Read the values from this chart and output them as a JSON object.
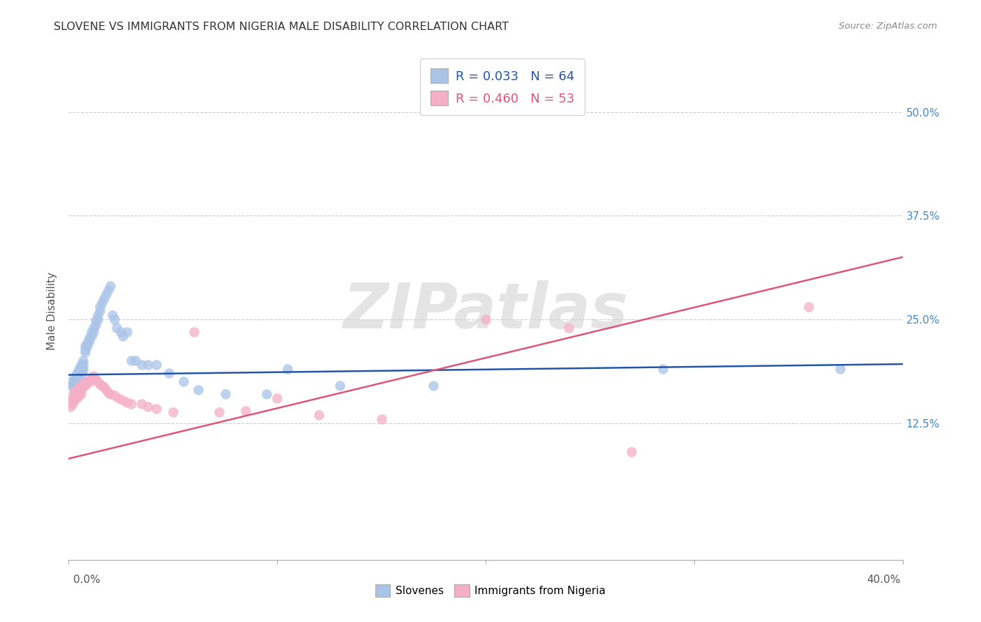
{
  "title": "SLOVENE VS IMMIGRANTS FROM NIGERIA MALE DISABILITY CORRELATION CHART",
  "source": "Source: ZipAtlas.com",
  "ylabel": "Male Disability",
  "ytick_labels": [
    "12.5%",
    "25.0%",
    "37.5%",
    "50.0%"
  ],
  "ytick_values": [
    0.125,
    0.25,
    0.375,
    0.5
  ],
  "xlim": [
    0.0,
    0.4
  ],
  "ylim": [
    -0.04,
    0.56
  ],
  "blue_color": "#aac4e8",
  "pink_color": "#f4afc6",
  "line_blue_color": "#2255aa",
  "line_pink_color": "#dd5577",
  "watermark": "ZIPatlas",
  "blue_line_x0": 0.0,
  "blue_line_y0": 0.183,
  "blue_line_x1": 0.4,
  "blue_line_y1": 0.196,
  "pink_line_x0": 0.0,
  "pink_line_y0": 0.082,
  "pink_line_x1": 0.4,
  "pink_line_y1": 0.325,
  "slovene_x": [
    0.001,
    0.002,
    0.002,
    0.003,
    0.003,
    0.003,
    0.004,
    0.004,
    0.004,
    0.004,
    0.005,
    0.005,
    0.005,
    0.006,
    0.006,
    0.006,
    0.006,
    0.007,
    0.007,
    0.007,
    0.007,
    0.008,
    0.008,
    0.008,
    0.009,
    0.009,
    0.01,
    0.01,
    0.011,
    0.011,
    0.012,
    0.012,
    0.013,
    0.013,
    0.014,
    0.014,
    0.015,
    0.015,
    0.016,
    0.017,
    0.018,
    0.019,
    0.02,
    0.021,
    0.022,
    0.023,
    0.025,
    0.026,
    0.028,
    0.03,
    0.032,
    0.035,
    0.038,
    0.042,
    0.048,
    0.055,
    0.062,
    0.075,
    0.095,
    0.105,
    0.13,
    0.175,
    0.285,
    0.37
  ],
  "slovene_y": [
    0.175,
    0.172,
    0.168,
    0.18,
    0.176,
    0.17,
    0.185,
    0.18,
    0.175,
    0.17,
    0.19,
    0.186,
    0.182,
    0.195,
    0.192,
    0.188,
    0.184,
    0.2,
    0.196,
    0.192,
    0.188,
    0.218,
    0.214,
    0.21,
    0.222,
    0.218,
    0.228,
    0.224,
    0.235,
    0.23,
    0.24,
    0.235,
    0.248,
    0.243,
    0.255,
    0.25,
    0.265,
    0.26,
    0.27,
    0.275,
    0.28,
    0.285,
    0.29,
    0.255,
    0.25,
    0.24,
    0.235,
    0.23,
    0.235,
    0.2,
    0.2,
    0.195,
    0.195,
    0.195,
    0.185,
    0.175,
    0.165,
    0.16,
    0.16,
    0.19,
    0.17,
    0.17,
    0.19,
    0.19
  ],
  "nigeria_x": [
    0.001,
    0.001,
    0.002,
    0.002,
    0.002,
    0.003,
    0.003,
    0.003,
    0.004,
    0.004,
    0.004,
    0.005,
    0.005,
    0.005,
    0.006,
    0.006,
    0.006,
    0.007,
    0.007,
    0.008,
    0.008,
    0.009,
    0.01,
    0.01,
    0.011,
    0.012,
    0.013,
    0.014,
    0.015,
    0.016,
    0.017,
    0.018,
    0.019,
    0.02,
    0.022,
    0.024,
    0.026,
    0.028,
    0.03,
    0.035,
    0.038,
    0.042,
    0.05,
    0.06,
    0.072,
    0.085,
    0.1,
    0.12,
    0.15,
    0.2,
    0.24,
    0.27,
    0.355
  ],
  "nigeria_y": [
    0.15,
    0.145,
    0.158,
    0.153,
    0.148,
    0.163,
    0.158,
    0.153,
    0.165,
    0.16,
    0.155,
    0.168,
    0.163,
    0.158,
    0.17,
    0.165,
    0.16,
    0.172,
    0.168,
    0.174,
    0.17,
    0.175,
    0.178,
    0.174,
    0.18,
    0.182,
    0.178,
    0.175,
    0.172,
    0.17,
    0.168,
    0.165,
    0.162,
    0.16,
    0.158,
    0.155,
    0.152,
    0.15,
    0.148,
    0.148,
    0.145,
    0.142,
    0.138,
    0.235,
    0.138,
    0.14,
    0.155,
    0.135,
    0.13,
    0.25,
    0.24,
    0.09,
    0.265
  ]
}
